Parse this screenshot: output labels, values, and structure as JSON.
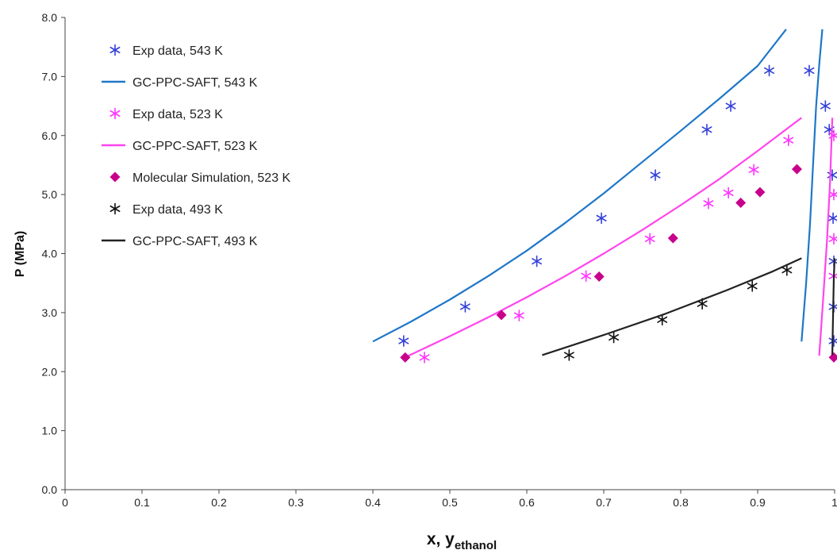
{
  "chart_data": {
    "type": "scatter",
    "title": "",
    "xlabel": {
      "main": "x, y",
      "sub": "ethanol"
    },
    "ylabel": "P (MPa)",
    "xlim": [
      0,
      1.0
    ],
    "ylim": [
      0,
      8.0
    ],
    "x_ticks": [
      "0",
      "0.1",
      "0.2",
      "0.3",
      "0.4",
      "0.5",
      "0.6",
      "0.7",
      "0.8",
      "0.9",
      "1"
    ],
    "y_ticks": [
      "0.0",
      "1.0",
      "2.0",
      "3.0",
      "4.0",
      "5.0",
      "6.0",
      "7.0",
      "8.0"
    ],
    "grid": false,
    "legend_position": "top-left",
    "series": [
      {
        "name": "Exp data, 543 K",
        "kind": "points",
        "marker": "asterisk",
        "color": "#3340d8",
        "points": [
          [
            0.44,
            2.52
          ],
          [
            0.52,
            3.1
          ],
          [
            0.613,
            3.87
          ],
          [
            0.697,
            4.6
          ],
          [
            0.767,
            5.33
          ],
          [
            0.834,
            6.1
          ],
          [
            0.865,
            6.5
          ],
          [
            0.915,
            7.1
          ],
          [
            0.967,
            7.1
          ],
          [
            0.988,
            6.5
          ],
          [
            0.993,
            6.1
          ],
          [
            0.997,
            5.33
          ],
          [
            0.998,
            4.6
          ],
          [
            0.999,
            3.87
          ],
          [
            0.999,
            3.1
          ],
          [
            0.999,
            2.52
          ]
        ]
      },
      {
        "name": "GC-PPC-SAFT, 543 K",
        "kind": "line",
        "color": "#1f77c8",
        "points": [
          [
            0.4,
            2.51
          ],
          [
            0.45,
            2.85
          ],
          [
            0.5,
            3.22
          ],
          [
            0.55,
            3.62
          ],
          [
            0.6,
            4.05
          ],
          [
            0.65,
            4.52
          ],
          [
            0.7,
            5.02
          ],
          [
            0.75,
            5.55
          ],
          [
            0.8,
            6.08
          ],
          [
            0.85,
            6.62
          ],
          [
            0.9,
            7.18
          ],
          [
            0.937,
            7.8
          ]
        ]
      },
      {
        "name": "",
        "kind": "line",
        "color": "#1f77c8",
        "points": [
          [
            0.957,
            2.51
          ],
          [
            0.963,
            3.5
          ],
          [
            0.968,
            4.5
          ],
          [
            0.972,
            5.5
          ],
          [
            0.976,
            6.5
          ],
          [
            0.98,
            7.2
          ],
          [
            0.984,
            7.8
          ]
        ]
      },
      {
        "name": "Exp data, 523 K",
        "kind": "points",
        "marker": "asterisk",
        "color": "#ff33ff",
        "points": [
          [
            0.467,
            2.24
          ],
          [
            0.59,
            2.95
          ],
          [
            0.677,
            3.62
          ],
          [
            0.76,
            4.25
          ],
          [
            0.836,
            4.85
          ],
          [
            0.862,
            5.03
          ],
          [
            0.895,
            5.42
          ],
          [
            0.94,
            5.92
          ],
          [
            0.999,
            6.0
          ],
          [
            0.999,
            5.0
          ],
          [
            0.999,
            4.25
          ],
          [
            0.999,
            3.62
          ]
        ]
      },
      {
        "name": "GC-PPC-SAFT, 523 K",
        "kind": "line",
        "color": "#ff44ee",
        "points": [
          [
            0.44,
            2.23
          ],
          [
            0.5,
            2.6
          ],
          [
            0.55,
            2.92
          ],
          [
            0.6,
            3.26
          ],
          [
            0.65,
            3.62
          ],
          [
            0.7,
            4.0
          ],
          [
            0.75,
            4.4
          ],
          [
            0.8,
            4.82
          ],
          [
            0.85,
            5.26
          ],
          [
            0.9,
            5.74
          ],
          [
            0.957,
            6.3
          ]
        ]
      },
      {
        "name": "",
        "kind": "line",
        "color": "#ff44ee",
        "points": [
          [
            0.98,
            2.27
          ],
          [
            0.985,
            3.2
          ],
          [
            0.99,
            4.2
          ],
          [
            0.994,
            5.2
          ],
          [
            0.997,
            6.3
          ]
        ]
      },
      {
        "name": "Molecular Simulation, 523 K",
        "kind": "points",
        "marker": "diamond",
        "color": "#c8008c",
        "points": [
          [
            0.442,
            2.24
          ],
          [
            0.567,
            2.96
          ],
          [
            0.694,
            3.61
          ],
          [
            0.79,
            4.26
          ],
          [
            0.878,
            4.86
          ],
          [
            0.903,
            5.04
          ],
          [
            0.951,
            5.43
          ],
          [
            0.999,
            2.24
          ]
        ]
      },
      {
        "name": "Exp data, 493 K",
        "kind": "points",
        "marker": "asterisk",
        "color": "#111111",
        "points": [
          [
            0.655,
            2.28
          ],
          [
            0.713,
            2.58
          ],
          [
            0.776,
            2.88
          ],
          [
            0.828,
            3.15
          ],
          [
            0.893,
            3.45
          ],
          [
            0.938,
            3.72
          ]
        ]
      },
      {
        "name": "GC-PPC-SAFT, 493 K",
        "kind": "line",
        "color": "#222222",
        "points": [
          [
            0.62,
            2.28
          ],
          [
            0.7,
            2.62
          ],
          [
            0.78,
            2.98
          ],
          [
            0.86,
            3.38
          ],
          [
            0.92,
            3.7
          ],
          [
            0.957,
            3.92
          ]
        ]
      },
      {
        "name": "",
        "kind": "line",
        "color": "#222222",
        "points": [
          [
            0.997,
            2.28
          ],
          [
            0.998,
            3.0
          ],
          [
            0.999,
            3.6
          ],
          [
            1.0,
            3.92
          ]
        ]
      }
    ]
  }
}
